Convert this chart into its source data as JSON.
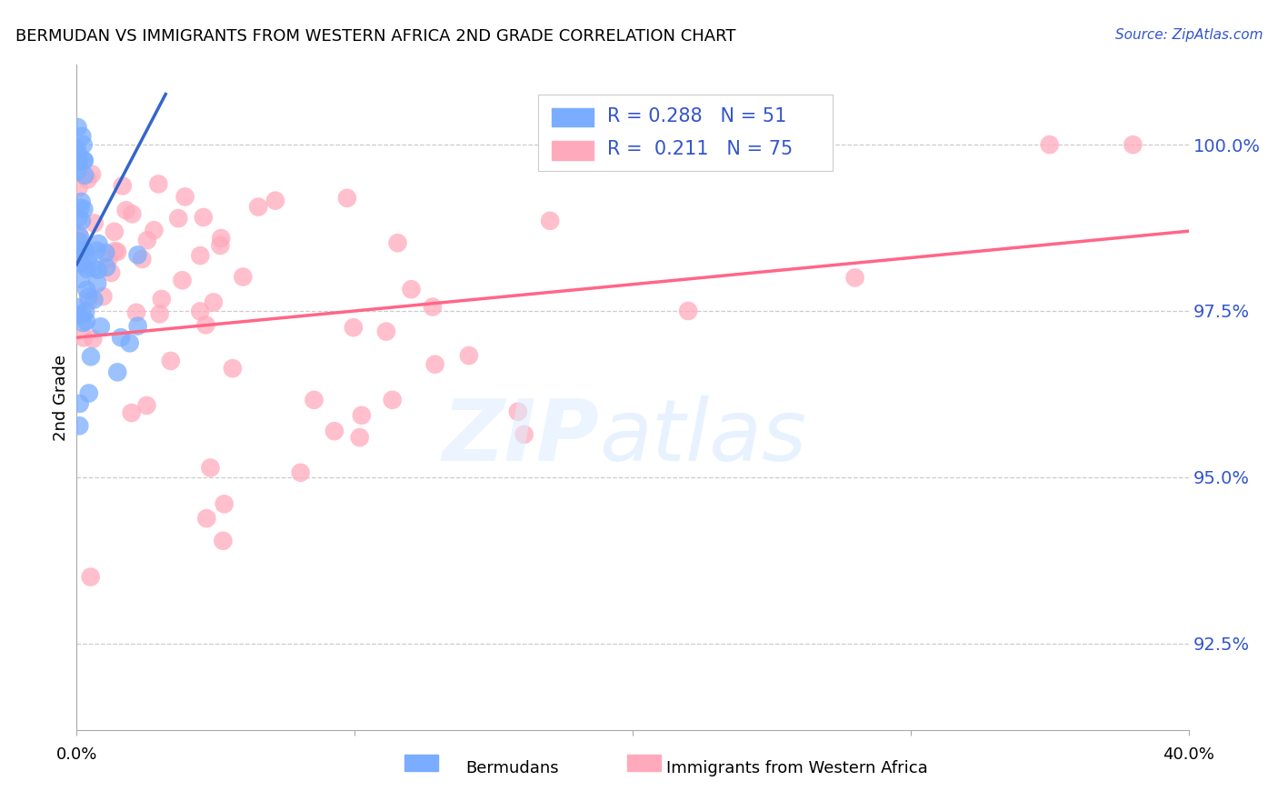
{
  "title": "BERMUDAN VS IMMIGRANTS FROM WESTERN AFRICA 2ND GRADE CORRELATION CHART",
  "source": "Source: ZipAtlas.com",
  "ylabel": "2nd Grade",
  "y_ticks": [
    92.5,
    95.0,
    97.5,
    100.0
  ],
  "x_min": 0.0,
  "x_max": 40.0,
  "y_min": 91.2,
  "y_max": 101.2,
  "blue_R": 0.288,
  "blue_N": 51,
  "pink_R": 0.211,
  "pink_N": 75,
  "blue_color": "#7aadff",
  "pink_color": "#ffaabc",
  "blue_line_color": "#3366cc",
  "pink_line_color": "#ff6688",
  "text_blue": "#3355cc",
  "legend_text_black": "#222222"
}
